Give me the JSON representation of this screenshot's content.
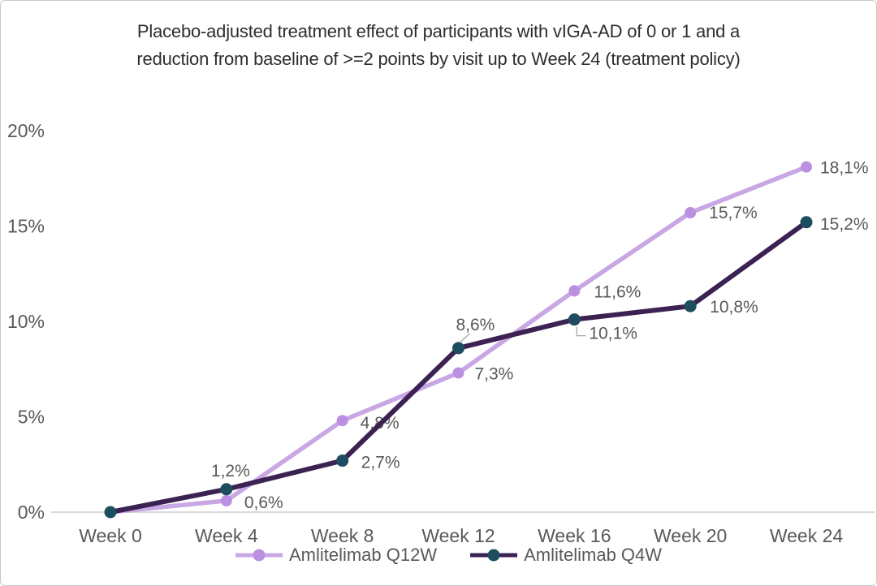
{
  "title_line1": "Placebo-adjusted treatment effect of participants with vIGA-AD of 0 or 1 and a",
  "title_line2": "reduction from baseline of >=2 points by visit up to Week 24 (treatment policy)",
  "chart_data": {
    "type": "line",
    "title": "Placebo-adjusted treatment effect of participants with vIGA-AD of 0 or 1 and a reduction from baseline of >=2 points by visit up to Week 24 (treatment policy)",
    "categories": [
      "Week 0",
      "Week 4",
      "Week 8",
      "Week 12",
      "Week 16",
      "Week 20",
      "Week 24"
    ],
    "x_weeks": [
      0,
      4,
      8,
      12,
      16,
      20,
      24
    ],
    "y_ticks": [
      {
        "value": 0,
        "label": "0%"
      },
      {
        "value": 5,
        "label": "5%"
      },
      {
        "value": 10,
        "label": "10%"
      },
      {
        "value": 15,
        "label": "15%"
      },
      {
        "value": 20,
        "label": "20%"
      }
    ],
    "ylim": [
      0,
      20
    ],
    "grid": false,
    "legend_position": "bottom",
    "series": [
      {
        "name": "Amlitelimab Q12W",
        "values": [
          0,
          0.6,
          4.8,
          7.3,
          11.6,
          15.7,
          18.1
        ],
        "labels": [
          "",
          "0,6%",
          "4,8%",
          "7,3%",
          "11,6%",
          "15,7%",
          "18,1%"
        ],
        "line_color": "#c9a7e5",
        "marker_color": "#bb90e0"
      },
      {
        "name": "Amlitelimab Q4W",
        "values": [
          0,
          1.2,
          2.7,
          8.6,
          10.1,
          10.8,
          15.2
        ],
        "labels": [
          "",
          "1,2%",
          "2,7%",
          "8,6%",
          "10,1%",
          "10,8%",
          "15,2%"
        ],
        "line_color": "#3b2253",
        "marker_color": "#1e4d60"
      }
    ],
    "colors": {
      "axis_line": "#d9d9d9",
      "tick_label": "#595959",
      "data_label": "#595959",
      "title_text": "#2d2d2d",
      "leader_line": "#a6a6a6"
    }
  }
}
